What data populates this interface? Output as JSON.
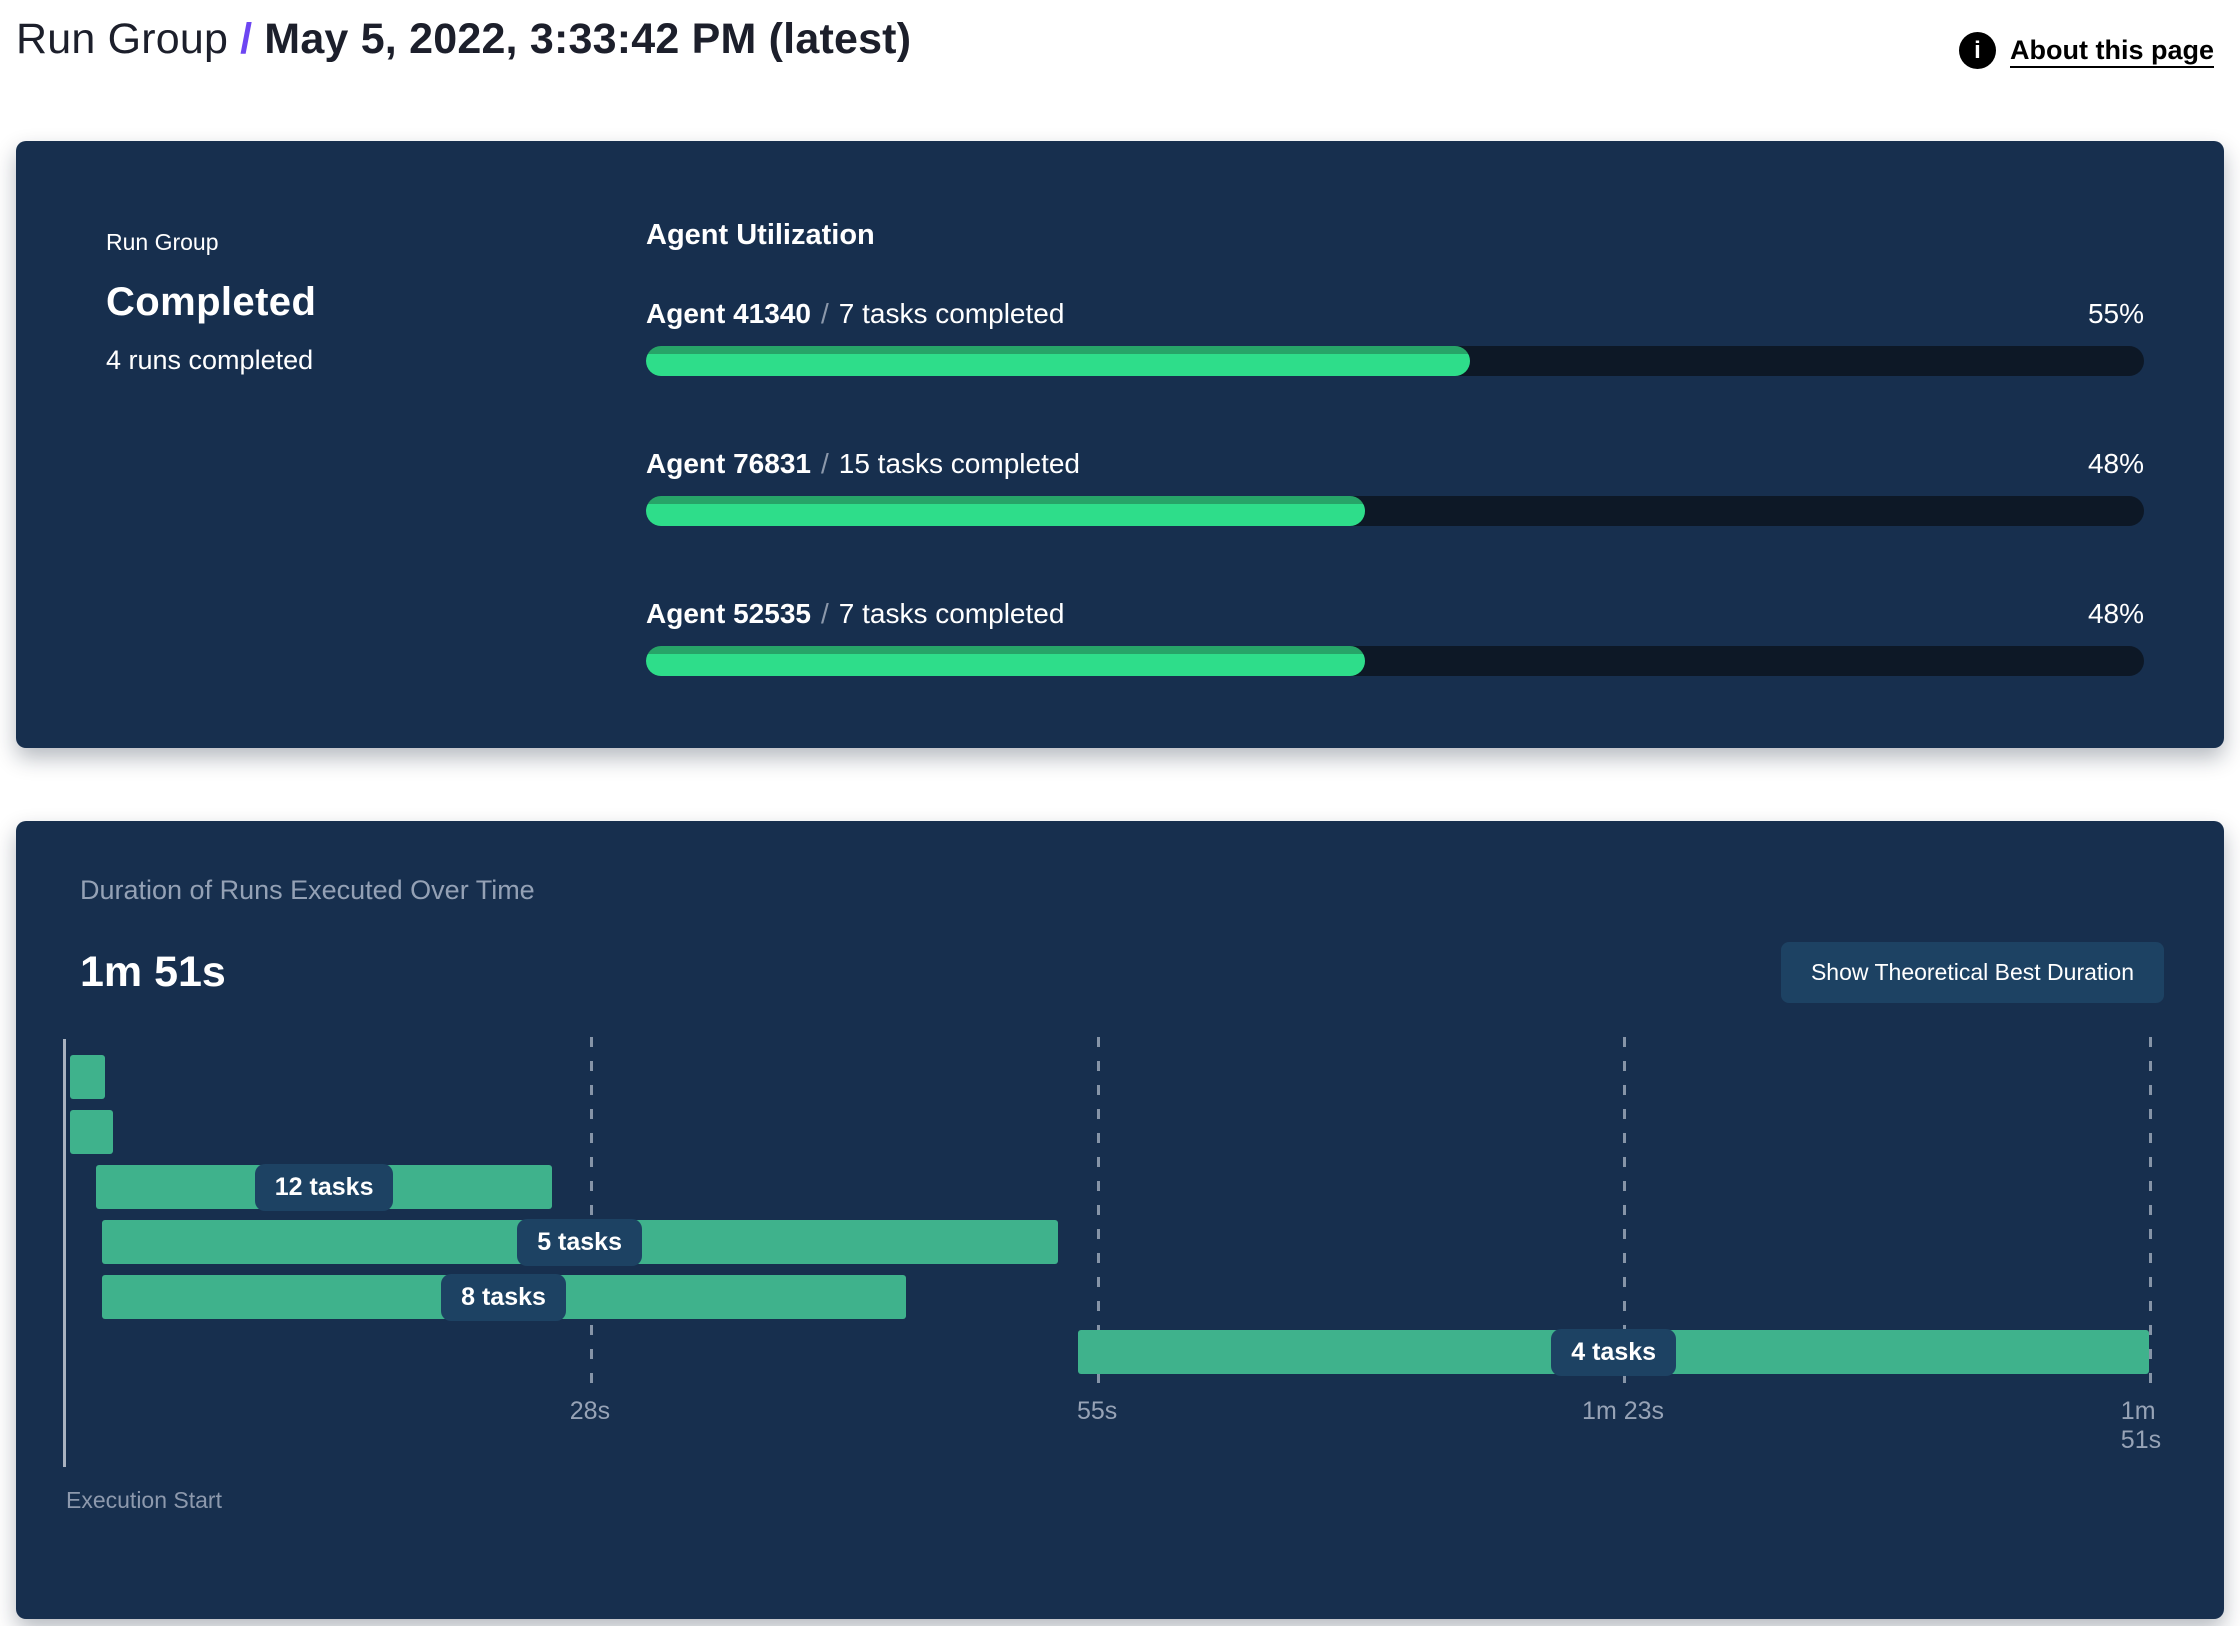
{
  "header": {
    "breadcrumb_root": "Run Group",
    "separator": "/",
    "title": "May 5, 2022, 3:33:42 PM (latest)",
    "about_link": "About this page",
    "info_icon_glyph": "i"
  },
  "colors": {
    "card_background": "#172f4e",
    "progress_fill_green": "#2edd8a",
    "progress_fill_top_green": "#27a468",
    "progress_track": "#0d1826",
    "gantt_bar_green": "#3fb28c",
    "pill_background": "#1d4263",
    "button_background": "#1d4263",
    "breadcrumb_separator_purple": "#6d46f2",
    "muted_text": "#94a1b5"
  },
  "run_group_card": {
    "label": "Run Group",
    "status": "Completed",
    "subtitle": "4 runs completed",
    "section_title": "Agent Utilization",
    "agent_separator": "/"
  },
  "agents": [
    {
      "name": "Agent 41340",
      "tasks": "7 tasks completed",
      "percent": 55,
      "percent_label": "55%"
    },
    {
      "name": "Agent 76831",
      "tasks": "15 tasks completed",
      "percent": 48,
      "percent_label": "48%"
    },
    {
      "name": "Agent 52535",
      "tasks": "7 tasks completed",
      "percent": 48,
      "percent_label": "48%"
    }
  ],
  "duration_card": {
    "title": "Duration of Runs Executed Over Time",
    "total_duration": "1m 51s",
    "button_label": "Show Theoretical Best Duration",
    "execution_start_label": "Execution Start"
  },
  "chart_data": {
    "type": "gantt",
    "title": "Duration of Runs Executed Over Time",
    "total_duration_label": "1m 51s",
    "x_axis": {
      "label": "Execution Start",
      "range_s": [
        0,
        111
      ],
      "ticks": [
        "28s",
        "55s",
        "1m 23s",
        "1m 51s"
      ],
      "tick_positions_s": [
        28,
        55,
        83,
        111
      ],
      "gridlines": "dashed-vertical"
    },
    "bars": [
      {
        "label": "",
        "start_s": 0.3,
        "end_s": 2.2
      },
      {
        "label": "",
        "start_s": 0.3,
        "end_s": 2.6
      },
      {
        "label": "12 tasks",
        "start_s": 1.7,
        "end_s": 26.0
      },
      {
        "label": "5 tasks",
        "start_s": 2.0,
        "end_s": 52.9
      },
      {
        "label": "8 tasks",
        "start_s": 2.0,
        "end_s": 44.8
      },
      {
        "label": "4 tasks",
        "start_s": 54.0,
        "end_s": 111.0
      }
    ]
  }
}
